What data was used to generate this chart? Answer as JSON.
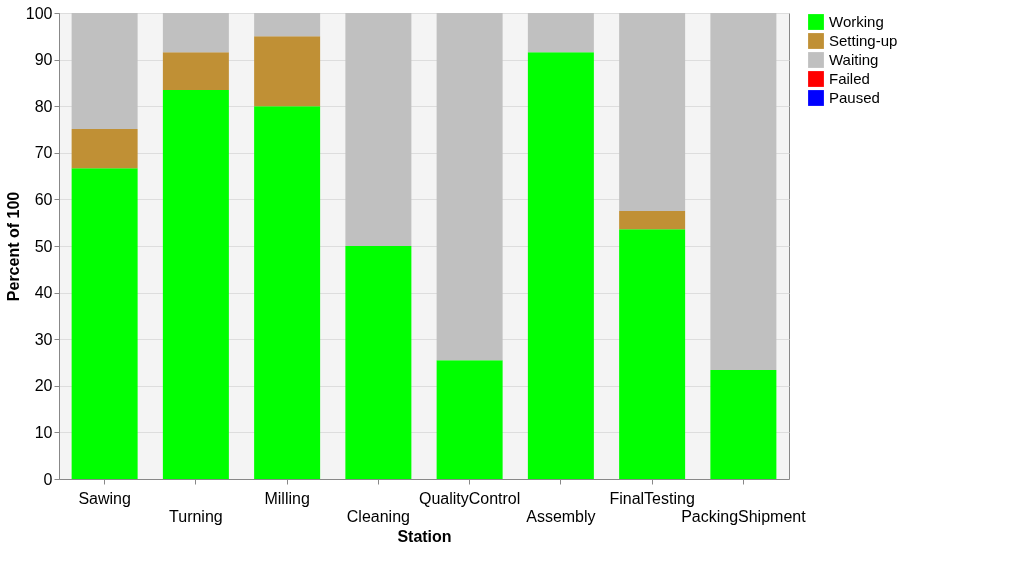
{
  "chart_data": {
    "type": "bar",
    "stacked": true,
    "xlabel": "Station",
    "ylabel": "Percent of 100",
    "categories": [
      "Sawing",
      "Turning",
      "Milling",
      "Cleaning",
      "QualityControl",
      "Assembly",
      "FinalTesting",
      "PackingShipment"
    ],
    "series": [
      {
        "name": "Working",
        "color": "#00ff00",
        "values": [
          66.7,
          83.5,
          80,
          50,
          25.5,
          91.6,
          53.6,
          23.4
        ]
      },
      {
        "name": "Setting-up",
        "color": "#c09035",
        "values": [
          8.4,
          8.1,
          15,
          0,
          0,
          0,
          3.9,
          0
        ]
      },
      {
        "name": "Waiting",
        "color": "#c0c0c0",
        "values": [
          24.9,
          8.4,
          5,
          50,
          74.5,
          8.4,
          42.5,
          76.6
        ]
      },
      {
        "name": "Failed",
        "color": "#ff0000",
        "values": [
          0,
          0,
          0,
          0,
          0,
          0,
          0,
          0
        ]
      },
      {
        "name": "Paused",
        "color": "#0000ff",
        "values": [
          0,
          0,
          0,
          0,
          0,
          0,
          0,
          0
        ]
      }
    ],
    "ylim": [
      0,
      100
    ],
    "yticks": [
      0,
      10,
      20,
      30,
      40,
      50,
      60,
      70,
      80,
      90,
      100
    ],
    "grid": "y",
    "legend": "top right"
  }
}
